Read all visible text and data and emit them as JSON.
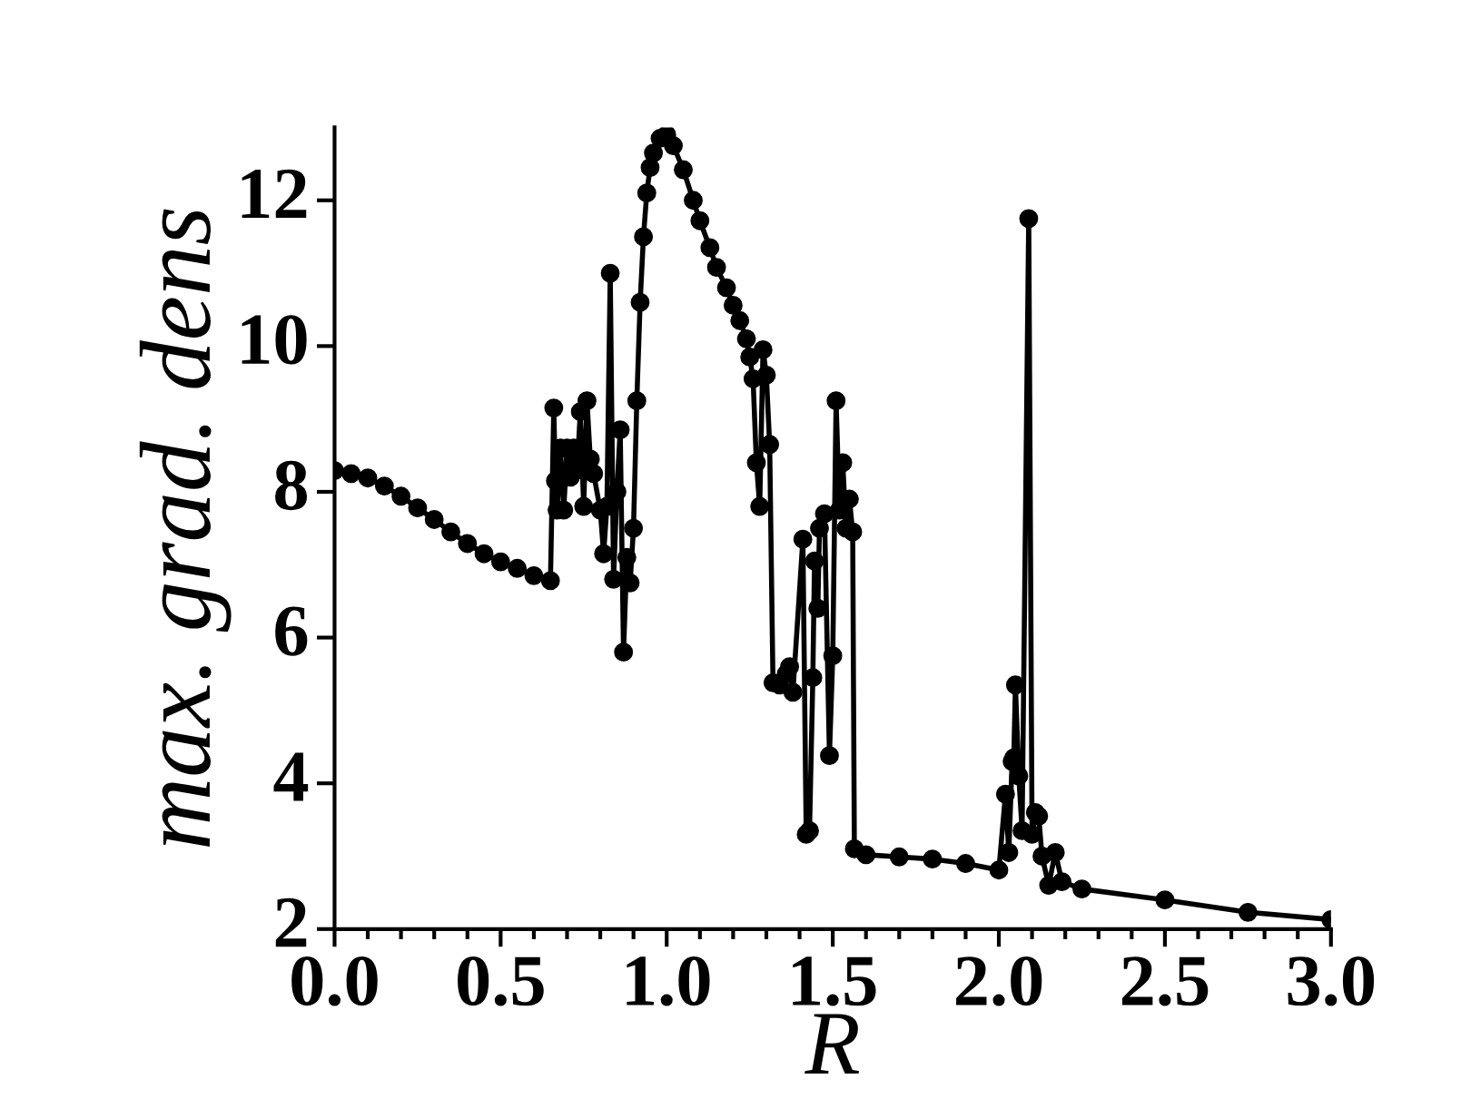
{
  "chart_data": {
    "type": "line",
    "xlabel": "R",
    "ylabel": "max. grad. dens",
    "xlim": [
      0,
      3
    ],
    "ylim": [
      2,
      13
    ],
    "xticks": [
      {
        "value": 0,
        "label": "0.0"
      },
      {
        "value": 0.5,
        "label": "0.5"
      },
      {
        "value": 1,
        "label": "1.0"
      },
      {
        "value": 1.5,
        "label": "1.5"
      },
      {
        "value": 2,
        "label": "2.0"
      },
      {
        "value": 2.5,
        "label": "2.5"
      },
      {
        "value": 3,
        "label": "3.0"
      }
    ],
    "yticks": [
      2,
      4,
      6,
      8,
      10,
      12
    ],
    "marker": "circle",
    "line_style": "solid",
    "grid": false,
    "legend": false,
    "series": [
      {
        "color": "#000000",
        "x": [
          0,
          0.05,
          0.1,
          0.15,
          0.2,
          0.25,
          0.3,
          0.35,
          0.4,
          0.45,
          0.5,
          0.55,
          0.6,
          0.65,
          0.66,
          0.665,
          0.67,
          0.68,
          0.69,
          0.7,
          0.71,
          0.72,
          0.73,
          0.74,
          0.75,
          0.76,
          0.77,
          0.78,
          0.8,
          0.81,
          0.82,
          0.83,
          0.84,
          0.85,
          0.86,
          0.87,
          0.88,
          0.89,
          0.9,
          0.91,
          0.92,
          0.93,
          0.94,
          0.95,
          0.96,
          0.98,
          1.0,
          1.02,
          1.05,
          1.08,
          1.1,
          1.13,
          1.15,
          1.18,
          1.2,
          1.22,
          1.24,
          1.25,
          1.26,
          1.27,
          1.28,
          1.29,
          1.3,
          1.31,
          1.32,
          1.34,
          1.36,
          1.37,
          1.38,
          1.41,
          1.42,
          1.43,
          1.44,
          1.445,
          1.455,
          1.46,
          1.475,
          1.49,
          1.5,
          1.51,
          1.52,
          1.53,
          1.54,
          1.55,
          1.56,
          1.565,
          1.6,
          1.7,
          1.8,
          1.9,
          2.0,
          2.02,
          2.03,
          2.04,
          2.045,
          2.05,
          2.06,
          2.07,
          2.09,
          2.1,
          2.11,
          2.12,
          2.13,
          2.15,
          2.17,
          2.19,
          2.25,
          2.5,
          2.75,
          3.0
        ],
        "values": [
          8.29,
          8.25,
          8.19,
          8.08,
          7.94,
          7.78,
          7.62,
          7.45,
          7.29,
          7.15,
          7.04,
          6.95,
          6.85,
          6.78,
          9.15,
          8.15,
          7.75,
          8.6,
          7.75,
          8.6,
          8.2,
          8.6,
          8.3,
          9.1,
          7.8,
          9.25,
          8.45,
          8.25,
          7.75,
          7.15,
          7.8,
          11.0,
          6.8,
          8.0,
          8.85,
          5.8,
          7.1,
          6.75,
          7.5,
          9.25,
          10.6,
          11.5,
          12.1,
          12.45,
          12.65,
          12.85,
          12.9,
          12.75,
          12.42,
          12.0,
          11.72,
          11.35,
          11.08,
          10.8,
          10.56,
          10.35,
          10.1,
          9.85,
          9.55,
          8.4,
          7.8,
          9.95,
          9.6,
          8.65,
          5.38,
          5.35,
          5.5,
          5.6,
          5.25,
          7.35,
          3.3,
          3.35,
          5.45,
          7.05,
          6.4,
          7.5,
          7.7,
          4.38,
          5.75,
          9.25,
          7.75,
          8.4,
          7.5,
          7.9,
          7.45,
          3.1,
          3.02,
          2.99,
          2.96,
          2.9,
          2.81,
          3.85,
          3.05,
          4.3,
          4.35,
          5.35,
          4.1,
          3.35,
          11.75,
          3.3,
          3.6,
          3.55,
          3.0,
          2.6,
          3.05,
          2.65,
          2.55,
          2.4,
          2.23,
          2.13
        ]
      }
    ]
  }
}
